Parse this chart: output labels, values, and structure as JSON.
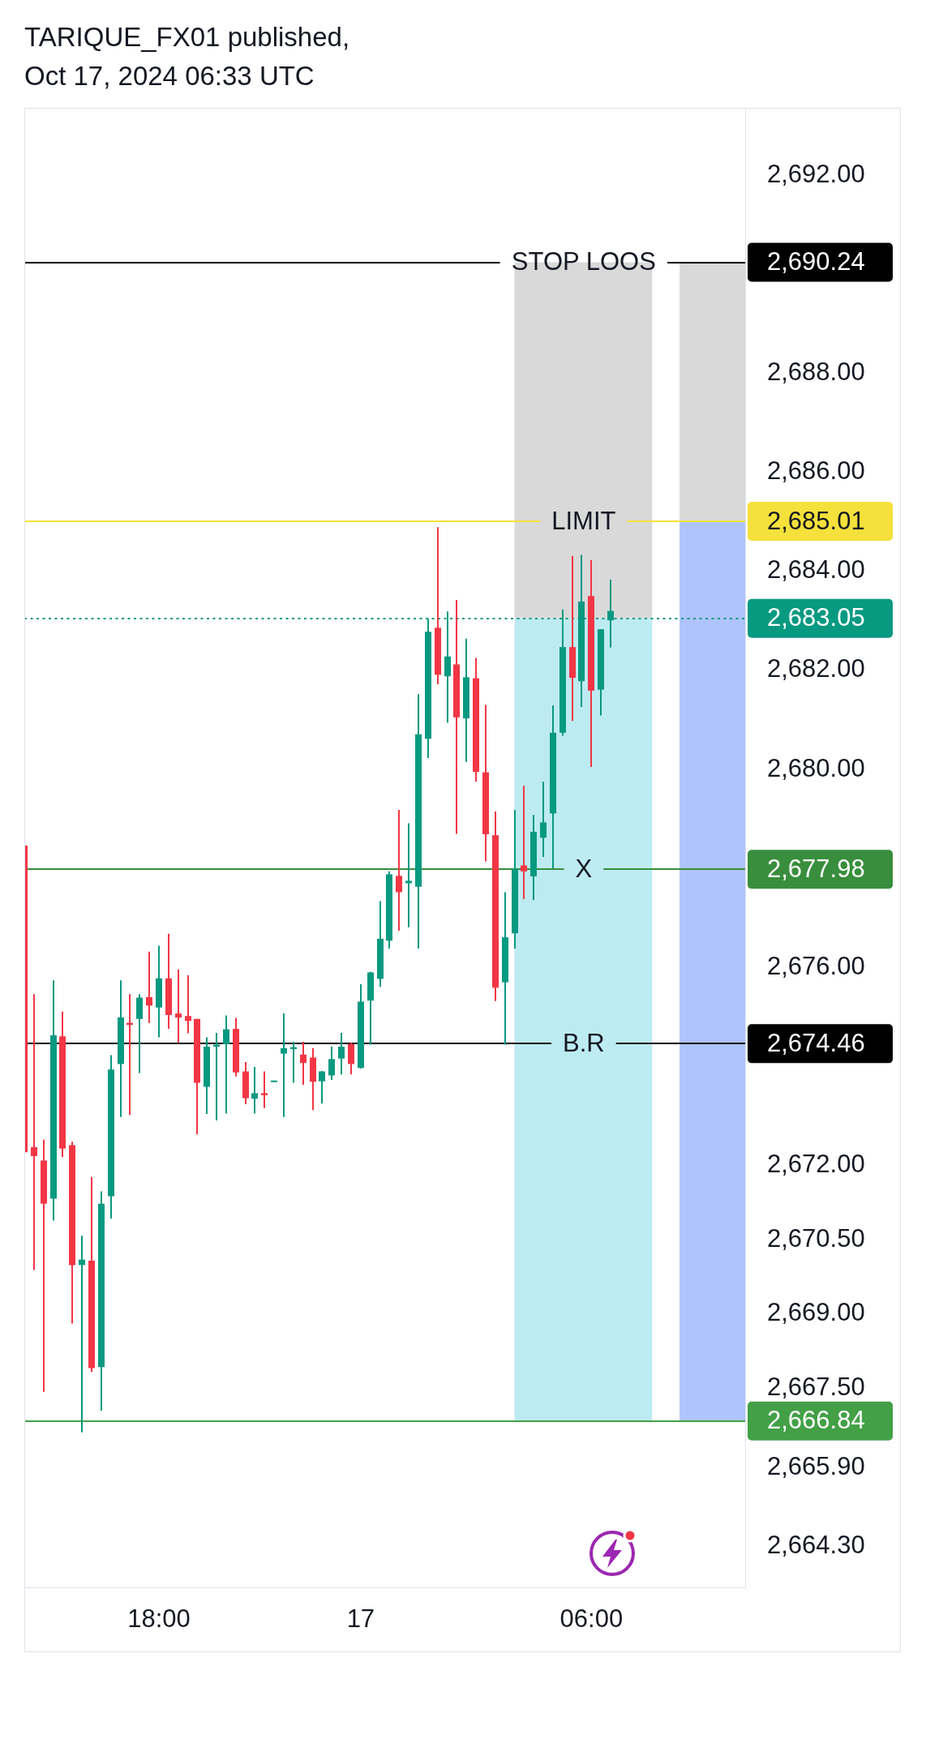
{
  "chart_data": {
    "type": "candlestick",
    "title": "TARIQUE_FX01 published,",
    "subtitle": "Oct 17, 2024 06:33 UTC",
    "categories": [
      null,
      null,
      null,
      null,
      null,
      null,
      null,
      null,
      null,
      null,
      null,
      null,
      null,
      null,
      "18:00",
      null,
      null,
      null,
      null,
      null,
      null,
      null,
      null,
      null,
      null,
      null,
      null,
      null,
      null,
      null,
      null,
      null,
      null,
      null,
      null,
      "17",
      null,
      null,
      null,
      null,
      null,
      null,
      null,
      null,
      null,
      null,
      null,
      null,
      null,
      null,
      null,
      null,
      null,
      null,
      null,
      null,
      null,
      null,
      null,
      "06:00",
      null,
      null,
      null,
      null,
      null,
      null,
      null,
      null,
      null,
      null,
      null,
      null,
      null,
      null,
      null,
      null
    ],
    "ohlc": [
      [
        2678.46,
        2678.46,
        2672.27,
        2672.27
      ],
      [
        2672.37,
        2675.46,
        2669.89,
        2672.19
      ],
      [
        2672.1,
        2672.52,
        2667.43,
        2671.23
      ],
      [
        2671.33,
        2675.74,
        2670.89,
        2674.63
      ],
      [
        2674.61,
        2675.11,
        2672.17,
        2672.34
      ],
      [
        2672.41,
        2672.48,
        2668.81,
        2669.99
      ],
      [
        2669.99,
        2670.58,
        2666.61,
        2670.1
      ],
      [
        2670.08,
        2671.77,
        2667.83,
        2667.91
      ],
      [
        2667.93,
        2671.48,
        2667.05,
        2671.23
      ],
      [
        2671.38,
        2674.23,
        2670.93,
        2673.94
      ],
      [
        2674.05,
        2675.74,
        2672.98,
        2674.99
      ],
      [
        2674.88,
        2675.46,
        2673.02,
        2674.84
      ],
      [
        2674.96,
        2675.46,
        2673.87,
        2675.39
      ],
      [
        2675.4,
        2676.32,
        2674.88,
        2675.23
      ],
      [
        2675.19,
        2676.44,
        2674.59,
        2675.78
      ],
      [
        2675.78,
        2676.68,
        2674.76,
        2675.04
      ],
      [
        2675.07,
        2675.96,
        2674.48,
        2674.99
      ],
      [
        2675.02,
        2675.84,
        2674.67,
        2674.92
      ],
      [
        2674.96,
        2674.96,
        2672.63,
        2673.67
      ],
      [
        2673.59,
        2674.59,
        2673.04,
        2674.4
      ],
      [
        2674.4,
        2674.68,
        2672.91,
        2674.44
      ],
      [
        2674.45,
        2675.03,
        2673.05,
        2674.75
      ],
      [
        2674.76,
        2674.98,
        2673.8,
        2673.88
      ],
      [
        2673.9,
        2674.09,
        2673.24,
        2673.36
      ],
      [
        2673.35,
        2673.99,
        2673.05,
        2673.46
      ],
      [
        2673.46,
        2673.9,
        2673.16,
        2673.42
      ],
      [
        2673.7,
        2673.7,
        2673.7,
        2673.7
      ],
      [
        2674.26,
        2675.07,
        2672.98,
        2674.37
      ],
      [
        2674.35,
        2674.5,
        2673.67,
        2674.39
      ],
      [
        2674.24,
        2674.5,
        2673.63,
        2674.07
      ],
      [
        2674.18,
        2674.37,
        2673.12,
        2673.69
      ],
      [
        2673.7,
        2673.91,
        2673.25,
        2673.9
      ],
      [
        2673.82,
        2674.4,
        2673.73,
        2674.15
      ],
      [
        2674.16,
        2674.68,
        2673.84,
        2674.4
      ],
      [
        2674.45,
        2674.48,
        2673.84,
        2674.05
      ],
      [
        2673.97,
        2675.66,
        2673.96,
        2675.31
      ],
      [
        2675.33,
        2675.91,
        2674.44,
        2675.9
      ],
      [
        2675.77,
        2677.34,
        2675.61,
        2676.58
      ],
      [
        2676.54,
        2677.94,
        2676.38,
        2677.88
      ],
      [
        2677.85,
        2679.18,
        2676.74,
        2677.52
      ],
      [
        2677.7,
        2678.91,
        2676.81,
        2677.75
      ],
      [
        2677.63,
        2681.52,
        2676.38,
        2680.71
      ],
      [
        2680.62,
        2683.04,
        2680.23,
        2682.78
      ],
      [
        2682.86,
        2684.89,
        2681.72,
        2681.91
      ],
      [
        2681.88,
        2683.19,
        2680.94,
        2682.28
      ],
      [
        2682.12,
        2683.42,
        2678.7,
        2681.05
      ],
      [
        2681.03,
        2682.64,
        2680.15,
        2681.86
      ],
      [
        2681.84,
        2682.25,
        2679.75,
        2679.95
      ],
      [
        2679.94,
        2681.3,
        2678.14,
        2678.69
      ],
      [
        2678.67,
        2679.15,
        2675.32,
        2675.59
      ],
      [
        2675.7,
        2677.52,
        2674.44,
        2676.61
      ],
      [
        2676.69,
        2679.18,
        2676.38,
        2677.99
      ],
      [
        2678.06,
        2679.67,
        2677.38,
        2677.94
      ],
      [
        2677.84,
        2679.08,
        2677.36,
        2678.74
      ],
      [
        2678.62,
        2679.75,
        2678.23,
        2678.93
      ],
      [
        2679.11,
        2681.29,
        2678.0,
        2680.74
      ],
      [
        2680.74,
        2683.23,
        2680.68,
        2682.47
      ],
      [
        2682.47,
        2684.31,
        2680.98,
        2681.85
      ],
      [
        2681.78,
        2684.33,
        2681.26,
        2683.39
      ],
      [
        2683.5,
        2684.23,
        2680.05,
        2681.59
      ],
      [
        2681.61,
        2682.83,
        2681.09,
        2682.83
      ],
      [
        2683.01,
        2683.83,
        2682.46,
        2683.2
      ],
      null,
      null,
      null,
      null,
      null,
      null,
      null,
      null,
      null,
      null,
      null,
      null,
      null,
      null
    ],
    "colors": [
      "#f23645",
      "#f23645",
      "#f23645",
      "#089981",
      "#f23645",
      "#f23645",
      "#089981",
      "#f23645",
      "#089981",
      "#089981",
      "#089981",
      "#f23645",
      "#089981",
      "#f23645",
      "#089981",
      "#f23645",
      "#f23645",
      "#f23645",
      "#f23645",
      "#089981",
      "#089981",
      "#089981",
      "#f23645",
      "#f23645",
      "#089981",
      "#f23645",
      "#089981",
      "#089981",
      "#089981",
      "#f23645",
      "#f23645",
      "#089981",
      "#089981",
      "#089981",
      "#f23645",
      "#089981",
      "#089981",
      "#089981",
      "#089981",
      "#f23645",
      "#089981",
      "#089981",
      "#089981",
      "#f23645",
      "#089981",
      "#f23645",
      "#089981",
      "#f23645",
      "#f23645",
      "#f23645",
      "#089981",
      "#089981",
      "#f23645",
      "#089981",
      "#089981",
      "#089981",
      "#089981",
      "#f23645",
      "#089981",
      "#f23645",
      "#089981",
      "#089981",
      null,
      null,
      null,
      null,
      null,
      null,
      null,
      null,
      null,
      null,
      null,
      null,
      null,
      null
    ],
    "ylim": [
      2663.48,
      2693.36
    ],
    "yticks": [
      {
        "value": 2692,
        "label": "2,692.00"
      },
      {
        "value": 2688,
        "label": "2,688.00"
      },
      {
        "value": 2686,
        "label": "2,686.00"
      },
      {
        "value": 2684,
        "label": "2,684.00"
      },
      {
        "value": 2682,
        "label": "2,682.00"
      },
      {
        "value": 2680,
        "label": "2,680.00"
      },
      {
        "value": 2676,
        "label": "2,676.00"
      },
      {
        "value": 2672,
        "label": "2,672.00"
      },
      {
        "value": 2670.5,
        "label": "2,670.50"
      },
      {
        "value": 2669,
        "label": "2,669.00"
      },
      {
        "value": 2667.5,
        "label": "2,667.50"
      },
      {
        "value": 2665.9,
        "label": "2,665.90"
      },
      {
        "value": 2664.3,
        "label": "2,664.30"
      }
    ],
    "bands": [
      {
        "axis": "y",
        "from": 2683.05,
        "to": 2690.24,
        "color": "#d9d9d9"
      },
      {
        "axis": "y",
        "from": 2666.84,
        "to": 2683.05,
        "color": "#bdebf2"
      },
      {
        "axis": "y",
        "from": 2685.01,
        "to": 2690.24,
        "color": "#d9d9d9"
      },
      {
        "axis": "y",
        "from": 2666.84,
        "to": 2685.01,
        "color": "#aec4fb"
      }
    ],
    "ref_lines": [
      {
        "axis": "y",
        "value": 2690.24,
        "label": "2,690.24",
        "color": "#000000"
      },
      {
        "axis": "y",
        "value": 2685.01,
        "label": "2,685.01",
        "color": "#f5e13b"
      },
      {
        "axis": "y",
        "value": 2683.05,
        "label": "2,683.05",
        "color": "#089981",
        "line_style": "dotted"
      },
      {
        "axis": "y",
        "value": 2677.98,
        "label": "2,677.98",
        "color": "#388e3c"
      },
      {
        "axis": "y",
        "value": 2674.46,
        "label": "2,674.46",
        "color": "#000000"
      },
      {
        "axis": "y",
        "value": 2666.84,
        "label": "2,666.84",
        "color": "#43a047"
      }
    ],
    "annotations": [
      {
        "text": "STOP LOOS",
        "y": 2690.24
      },
      {
        "text": "LIMIT",
        "y": 2685.01
      },
      {
        "text": "X",
        "y": 2677.98
      },
      {
        "text": "B.R",
        "y": 2674.46
      }
    ]
  }
}
